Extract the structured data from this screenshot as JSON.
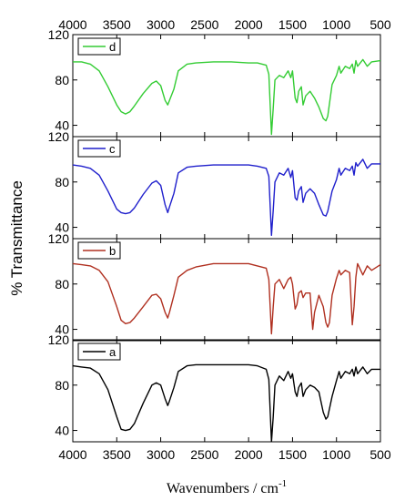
{
  "chart_data": {
    "type": "line",
    "xlabel": "Wavenumbers / cm",
    "xlabel_superscript": "-1",
    "ylabel": "% Transmittance",
    "xlim": [
      4000,
      500
    ],
    "x_reversed": true,
    "x_ticks": [
      4000,
      3500,
      3000,
      2500,
      2000,
      1500,
      1000,
      500
    ],
    "y_ticks": [
      40,
      80,
      120
    ],
    "panel_ylim": [
      30,
      120
    ],
    "legend_placement": "top-left",
    "grid": false,
    "panels": [
      {
        "name": "d",
        "color": "#33cc33",
        "points": [
          [
            4000,
            96
          ],
          [
            3900,
            96
          ],
          [
            3800,
            94
          ],
          [
            3700,
            88
          ],
          [
            3600,
            74
          ],
          [
            3500,
            58
          ],
          [
            3450,
            52
          ],
          [
            3400,
            50
          ],
          [
            3350,
            52
          ],
          [
            3300,
            57
          ],
          [
            3200,
            68
          ],
          [
            3100,
            77
          ],
          [
            3050,
            79
          ],
          [
            3000,
            75
          ],
          [
            2950,
            62
          ],
          [
            2920,
            58
          ],
          [
            2900,
            62
          ],
          [
            2850,
            72
          ],
          [
            2800,
            88
          ],
          [
            2700,
            94
          ],
          [
            2600,
            95
          ],
          [
            2400,
            96
          ],
          [
            2200,
            96
          ],
          [
            2000,
            95
          ],
          [
            1900,
            95
          ],
          [
            1800,
            93
          ],
          [
            1770,
            85
          ],
          [
            1740,
            32
          ],
          [
            1720,
            55
          ],
          [
            1700,
            80
          ],
          [
            1650,
            84
          ],
          [
            1600,
            82
          ],
          [
            1550,
            88
          ],
          [
            1520,
            82
          ],
          [
            1500,
            88
          ],
          [
            1470,
            64
          ],
          [
            1450,
            60
          ],
          [
            1430,
            70
          ],
          [
            1400,
            74
          ],
          [
            1380,
            58
          ],
          [
            1350,
            66
          ],
          [
            1300,
            70
          ],
          [
            1250,
            64
          ],
          [
            1200,
            56
          ],
          [
            1150,
            46
          ],
          [
            1120,
            44
          ],
          [
            1100,
            48
          ],
          [
            1050,
            76
          ],
          [
            1000,
            84
          ],
          [
            970,
            92
          ],
          [
            950,
            86
          ],
          [
            900,
            92
          ],
          [
            850,
            90
          ],
          [
            820,
            94
          ],
          [
            800,
            86
          ],
          [
            780,
            97
          ],
          [
            760,
            92
          ],
          [
            700,
            98
          ],
          [
            650,
            92
          ],
          [
            600,
            96
          ],
          [
            500,
            97
          ]
        ]
      },
      {
        "name": "c",
        "color": "#1f1fcc",
        "points": [
          [
            4000,
            95
          ],
          [
            3900,
            94
          ],
          [
            3800,
            92
          ],
          [
            3700,
            86
          ],
          [
            3600,
            72
          ],
          [
            3500,
            56
          ],
          [
            3450,
            53
          ],
          [
            3400,
            52
          ],
          [
            3350,
            53
          ],
          [
            3300,
            57
          ],
          [
            3200,
            69
          ],
          [
            3100,
            79
          ],
          [
            3050,
            81
          ],
          [
            3000,
            77
          ],
          [
            2950,
            60
          ],
          [
            2920,
            53
          ],
          [
            2900,
            58
          ],
          [
            2850,
            70
          ],
          [
            2800,
            88
          ],
          [
            2700,
            93
          ],
          [
            2600,
            94
          ],
          [
            2400,
            95
          ],
          [
            2200,
            95
          ],
          [
            2000,
            95
          ],
          [
            1900,
            94
          ],
          [
            1800,
            92
          ],
          [
            1770,
            85
          ],
          [
            1740,
            33
          ],
          [
            1720,
            55
          ],
          [
            1700,
            80
          ],
          [
            1650,
            88
          ],
          [
            1600,
            86
          ],
          [
            1550,
            92
          ],
          [
            1520,
            84
          ],
          [
            1500,
            90
          ],
          [
            1470,
            66
          ],
          [
            1450,
            64
          ],
          [
            1430,
            72
          ],
          [
            1400,
            76
          ],
          [
            1380,
            62
          ],
          [
            1350,
            70
          ],
          [
            1300,
            74
          ],
          [
            1250,
            70
          ],
          [
            1200,
            60
          ],
          [
            1150,
            51
          ],
          [
            1120,
            50
          ],
          [
            1100,
            54
          ],
          [
            1050,
            72
          ],
          [
            1000,
            82
          ],
          [
            970,
            92
          ],
          [
            950,
            86
          ],
          [
            900,
            92
          ],
          [
            850,
            90
          ],
          [
            820,
            94
          ],
          [
            800,
            86
          ],
          [
            780,
            97
          ],
          [
            760,
            94
          ],
          [
            700,
            100
          ],
          [
            650,
            92
          ],
          [
            600,
            96
          ],
          [
            500,
            96
          ]
        ]
      },
      {
        "name": "b",
        "color": "#b03020",
        "points": [
          [
            4000,
            98
          ],
          [
            3900,
            97
          ],
          [
            3800,
            96
          ],
          [
            3700,
            92
          ],
          [
            3600,
            82
          ],
          [
            3500,
            60
          ],
          [
            3450,
            48
          ],
          [
            3400,
            45
          ],
          [
            3350,
            46
          ],
          [
            3300,
            50
          ],
          [
            3200,
            60
          ],
          [
            3100,
            70
          ],
          [
            3050,
            71
          ],
          [
            3000,
            67
          ],
          [
            2950,
            55
          ],
          [
            2920,
            50
          ],
          [
            2900,
            55
          ],
          [
            2850,
            70
          ],
          [
            2800,
            86
          ],
          [
            2700,
            92
          ],
          [
            2600,
            95
          ],
          [
            2400,
            98
          ],
          [
            2200,
            98
          ],
          [
            2000,
            98
          ],
          [
            1900,
            96
          ],
          [
            1800,
            94
          ],
          [
            1770,
            84
          ],
          [
            1740,
            36
          ],
          [
            1720,
            60
          ],
          [
            1700,
            80
          ],
          [
            1650,
            84
          ],
          [
            1600,
            76
          ],
          [
            1550,
            84
          ],
          [
            1520,
            86
          ],
          [
            1500,
            80
          ],
          [
            1470,
            58
          ],
          [
            1450,
            62
          ],
          [
            1430,
            72
          ],
          [
            1400,
            74
          ],
          [
            1380,
            68
          ],
          [
            1350,
            72
          ],
          [
            1300,
            72
          ],
          [
            1270,
            40
          ],
          [
            1250,
            55
          ],
          [
            1200,
            70
          ],
          [
            1150,
            60
          ],
          [
            1120,
            46
          ],
          [
            1100,
            42
          ],
          [
            1080,
            46
          ],
          [
            1050,
            70
          ],
          [
            1000,
            85
          ],
          [
            970,
            92
          ],
          [
            950,
            88
          ],
          [
            900,
            92
          ],
          [
            850,
            90
          ],
          [
            820,
            44
          ],
          [
            800,
            60
          ],
          [
            780,
            86
          ],
          [
            760,
            98
          ],
          [
            700,
            88
          ],
          [
            650,
            96
          ],
          [
            600,
            92
          ],
          [
            500,
            97
          ]
        ]
      },
      {
        "name": "a",
        "color": "#000000",
        "points": [
          [
            4000,
            97
          ],
          [
            3900,
            96
          ],
          [
            3800,
            95
          ],
          [
            3700,
            90
          ],
          [
            3600,
            76
          ],
          [
            3500,
            52
          ],
          [
            3450,
            41
          ],
          [
            3400,
            40
          ],
          [
            3350,
            41
          ],
          [
            3300,
            46
          ],
          [
            3200,
            64
          ],
          [
            3100,
            80
          ],
          [
            3050,
            82
          ],
          [
            3000,
            80
          ],
          [
            2950,
            68
          ],
          [
            2920,
            62
          ],
          [
            2900,
            66
          ],
          [
            2850,
            78
          ],
          [
            2800,
            92
          ],
          [
            2700,
            97
          ],
          [
            2600,
            98
          ],
          [
            2400,
            98
          ],
          [
            2200,
            98
          ],
          [
            2000,
            98
          ],
          [
            1900,
            97
          ],
          [
            1800,
            94
          ],
          [
            1770,
            85
          ],
          [
            1740,
            30
          ],
          [
            1720,
            52
          ],
          [
            1700,
            80
          ],
          [
            1650,
            88
          ],
          [
            1600,
            84
          ],
          [
            1550,
            92
          ],
          [
            1520,
            86
          ],
          [
            1500,
            90
          ],
          [
            1470,
            74
          ],
          [
            1450,
            70
          ],
          [
            1430,
            78
          ],
          [
            1400,
            82
          ],
          [
            1380,
            70
          ],
          [
            1350,
            76
          ],
          [
            1300,
            80
          ],
          [
            1250,
            78
          ],
          [
            1200,
            74
          ],
          [
            1150,
            56
          ],
          [
            1120,
            50
          ],
          [
            1100,
            52
          ],
          [
            1050,
            70
          ],
          [
            1000,
            84
          ],
          [
            970,
            92
          ],
          [
            950,
            86
          ],
          [
            900,
            92
          ],
          [
            850,
            90
          ],
          [
            820,
            94
          ],
          [
            800,
            88
          ],
          [
            780,
            96
          ],
          [
            760,
            90
          ],
          [
            700,
            96
          ],
          [
            650,
            90
          ],
          [
            600,
            94
          ],
          [
            500,
            94
          ]
        ]
      }
    ]
  }
}
